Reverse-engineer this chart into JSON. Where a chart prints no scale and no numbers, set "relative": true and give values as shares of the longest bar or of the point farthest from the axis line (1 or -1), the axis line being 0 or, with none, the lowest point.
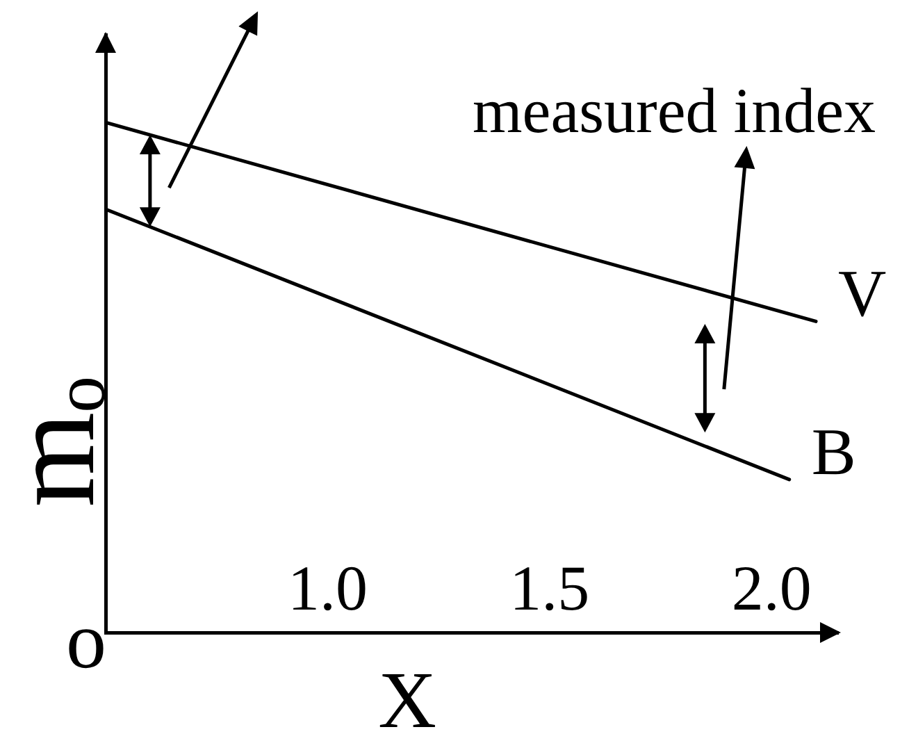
{
  "chart_data": {
    "type": "line",
    "relative": true,
    "xlabel": "X",
    "ylabel": "mₒ",
    "xlim": [
      0.5,
      2.15
    ],
    "xticks": [
      {
        "value": 1,
        "label": "1.0"
      },
      1.5,
      {
        "value": 2,
        "label": "2.0"
      }
    ],
    "series": [
      {
        "name": "V",
        "color": "#000000",
        "x": [
          0.5,
          2.1
        ],
        "values": [
          1,
          0.61
        ]
      },
      {
        "name": "B",
        "color": "#000000",
        "x": [
          0.5,
          2.04
        ],
        "values": [
          0.83,
          0.3
        ]
      }
    ],
    "marker": "none",
    "grid": false,
    "legend": false,
    "annotations": [
      "measured index",
      "o"
    ]
  }
}
